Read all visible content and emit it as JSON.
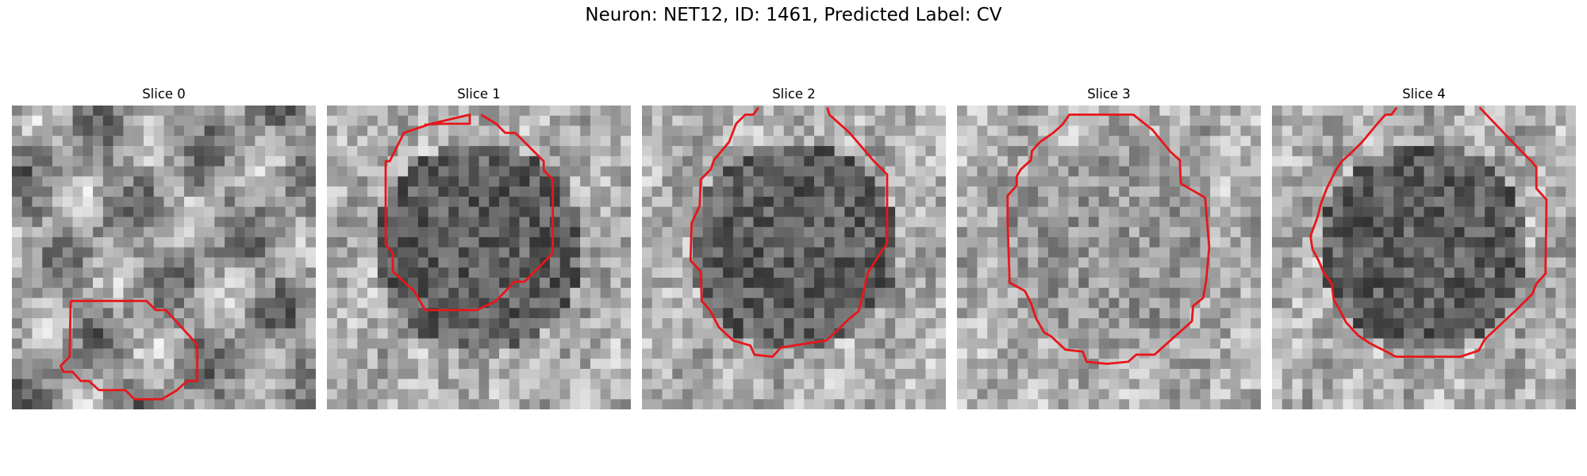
{
  "figure": {
    "title": "Neuron: NET12, ID: 1461, Predicted Label: CV",
    "contour_color": "#e8161b",
    "slices": [
      {
        "label": "Slice 0",
        "seed": 11,
        "style": "mesh"
      },
      {
        "label": "Slice 1",
        "seed": 23,
        "style": "blob"
      },
      {
        "label": "Slice 2",
        "seed": 37,
        "style": "blob"
      },
      {
        "label": "Slice 3",
        "seed": 41,
        "style": "faint"
      },
      {
        "label": "Slice 4",
        "seed": 59,
        "style": "blob"
      }
    ]
  }
}
